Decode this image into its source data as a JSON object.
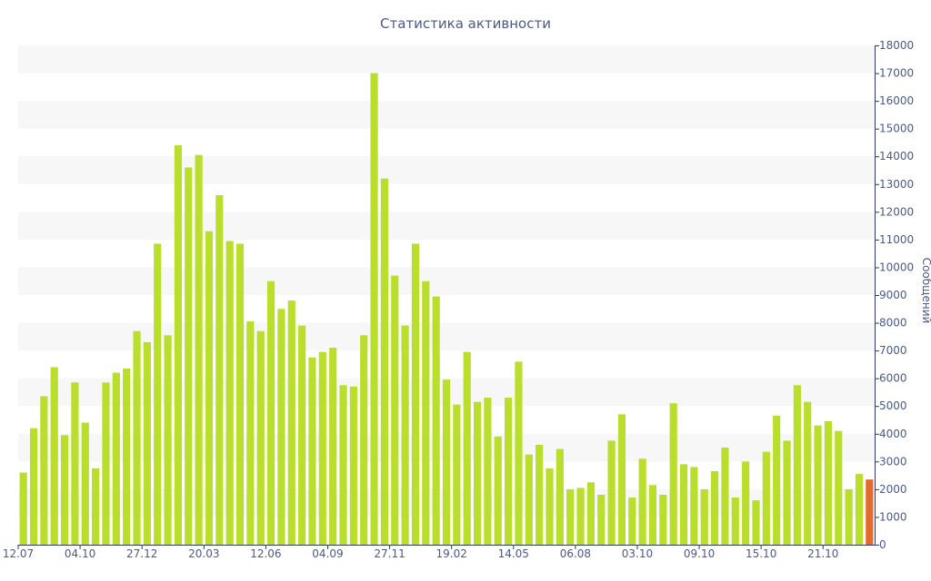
{
  "chart_data": {
    "type": "bar",
    "title": "Статистика активности",
    "ylabel": "Сообщений",
    "xlabel": "",
    "ylim": [
      0,
      18000
    ],
    "y_ticks": [
      0,
      1000,
      2000,
      3000,
      4000,
      5000,
      6000,
      7000,
      8000,
      9000,
      10000,
      11000,
      12000,
      13000,
      14000,
      15000,
      16000,
      17000,
      18000
    ],
    "x_tick_labels": [
      {
        "index": 0,
        "label": "12.07"
      },
      {
        "index": 6,
        "label": "04.10"
      },
      {
        "index": 12,
        "label": "27.12"
      },
      {
        "index": 18,
        "label": "20.03"
      },
      {
        "index": 24,
        "label": "12.06"
      },
      {
        "index": 30,
        "label": "04.09"
      },
      {
        "index": 36,
        "label": "27.11"
      },
      {
        "index": 42,
        "label": "19.02"
      },
      {
        "index": 48,
        "label": "14.05"
      },
      {
        "index": 54,
        "label": "06.08"
      },
      {
        "index": 60,
        "label": "03.10"
      },
      {
        "index": 66,
        "label": "09.10"
      },
      {
        "index": 72,
        "label": "15.10"
      },
      {
        "index": 78,
        "label": "21.10"
      }
    ],
    "values": [
      2600,
      4200,
      5350,
      6400,
      3950,
      5850,
      4400,
      2750,
      5850,
      6200,
      6350,
      7700,
      7300,
      10850,
      7550,
      14400,
      13600,
      14050,
      11300,
      12600,
      10950,
      10850,
      8050,
      7700,
      9500,
      8500,
      8800,
      7900,
      6750,
      6950,
      7100,
      5750,
      5700,
      7550,
      17000,
      13200,
      9700,
      7900,
      10850,
      9500,
      8950,
      5950,
      5050,
      6950,
      5150,
      5300,
      3900,
      5300,
      6600,
      3250,
      3600,
      2750,
      3450,
      2000,
      2050,
      2250,
      1800,
      3750,
      4700,
      1700,
      3100,
      2150,
      1800,
      5100,
      2900,
      2800,
      2000,
      2650,
      3500,
      1700,
      3000,
      1600,
      3350,
      4650,
      3750,
      5750,
      5150,
      4300,
      4450,
      4100,
      2000,
      2550,
      2350
    ],
    "highlight_index": 82,
    "colors": {
      "bar": "#bade2c",
      "highlight": "#e36a2c",
      "text": "#4a5a8a",
      "axis": "#2e3a6a",
      "band": "#f7f7f7"
    },
    "grid": "alternating-bands"
  }
}
